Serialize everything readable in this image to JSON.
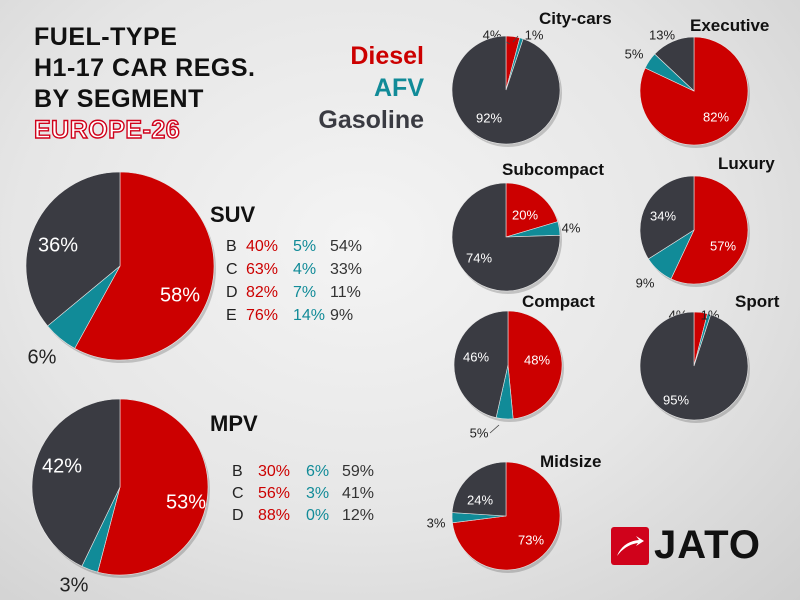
{
  "title": {
    "lines": [
      "FUEL-TYPE",
      "H1-17 CAR REGS.",
      "BY SEGMENT"
    ],
    "region": "EUROPE-26"
  },
  "legend": [
    {
      "label": "Diesel",
      "color": "#cc0000"
    },
    {
      "label": "AFV",
      "color": "#118b98"
    },
    {
      "label": "Gasoline",
      "color": "#3a3b42"
    }
  ],
  "logo": {
    "text": "JATO",
    "icon": "jato-arrow-icon"
  },
  "chart_data": [
    {
      "type": "pie",
      "title": "SUV",
      "slices": [
        {
          "label": "Diesel",
          "value": 58,
          "text": "58%"
        },
        {
          "label": "AFV",
          "value": 6,
          "text": "6%"
        },
        {
          "label": "Gasoline",
          "value": 36,
          "text": "36%"
        }
      ],
      "breakdown": {
        "columns": [
          "",
          "Diesel",
          "AFV",
          "Gasoline"
        ],
        "rows": [
          {
            "class": "B",
            "diesel": "40%",
            "afv": "5%",
            "gasoline": "54%"
          },
          {
            "class": "C",
            "diesel": "63%",
            "afv": "4%",
            "gasoline": "33%"
          },
          {
            "class": "D",
            "diesel": "82%",
            "afv": "7%",
            "gasoline": "11%"
          },
          {
            "class": "E",
            "diesel": "76%",
            "afv": "14%",
            "gasoline": "9%"
          }
        ]
      }
    },
    {
      "type": "pie",
      "title": "MPV",
      "slices": [
        {
          "label": "Diesel",
          "value": 53,
          "text": "53%"
        },
        {
          "label": "AFV",
          "value": 3,
          "text": "3%"
        },
        {
          "label": "Gasoline",
          "value": 42,
          "text": "42%"
        }
      ],
      "breakdown": {
        "columns": [
          "",
          "Diesel",
          "AFV",
          "Gasoline"
        ],
        "rows": [
          {
            "class": "B",
            "diesel": "30%",
            "afv": "6%",
            "gasoline": "59%"
          },
          {
            "class": "C",
            "diesel": "56%",
            "afv": "3%",
            "gasoline": "41%"
          },
          {
            "class": "D",
            "diesel": "88%",
            "afv": "0%",
            "gasoline": "12%"
          }
        ]
      }
    },
    {
      "type": "pie",
      "title": "City-cars",
      "slices": [
        {
          "label": "Diesel",
          "value": 4,
          "text": "4%"
        },
        {
          "label": "AFV",
          "value": 1,
          "text": "1%"
        },
        {
          "label": "Gasoline",
          "value": 92,
          "text": "92%"
        }
      ]
    },
    {
      "type": "pie",
      "title": "Executive",
      "slices": [
        {
          "label": "Diesel",
          "value": 82,
          "text": "82%"
        },
        {
          "label": "AFV",
          "value": 5,
          "text": "5%"
        },
        {
          "label": "Gasoline",
          "value": 13,
          "text": "13%"
        }
      ]
    },
    {
      "type": "pie",
      "title": "Subcompact",
      "slices": [
        {
          "label": "Diesel",
          "value": 20,
          "text": "20%"
        },
        {
          "label": "AFV",
          "value": 4,
          "text": "4%"
        },
        {
          "label": "Gasoline",
          "value": 74,
          "text": "74%"
        }
      ]
    },
    {
      "type": "pie",
      "title": "Luxury",
      "slices": [
        {
          "label": "Diesel",
          "value": 57,
          "text": "57%"
        },
        {
          "label": "AFV",
          "value": 9,
          "text": "9%"
        },
        {
          "label": "Gasoline",
          "value": 34,
          "text": "34%"
        }
      ]
    },
    {
      "type": "pie",
      "title": "Compact",
      "slices": [
        {
          "label": "Diesel",
          "value": 48,
          "text": "48%"
        },
        {
          "label": "AFV",
          "value": 5,
          "text": "5%"
        },
        {
          "label": "Gasoline",
          "value": 46,
          "text": "46%"
        }
      ]
    },
    {
      "type": "pie",
      "title": "Sport",
      "slices": [
        {
          "label": "Diesel",
          "value": 4,
          "text": "4%"
        },
        {
          "label": "AFV",
          "value": 1,
          "text": "1%"
        },
        {
          "label": "Gasoline",
          "value": 95,
          "text": "95%"
        }
      ]
    },
    {
      "type": "pie",
      "title": "Midsize",
      "slices": [
        {
          "label": "Diesel",
          "value": 73,
          "text": "73%"
        },
        {
          "label": "AFV",
          "value": 3,
          "text": "3%"
        },
        {
          "label": "Gasoline",
          "value": 24,
          "text": "24%"
        }
      ]
    }
  ]
}
